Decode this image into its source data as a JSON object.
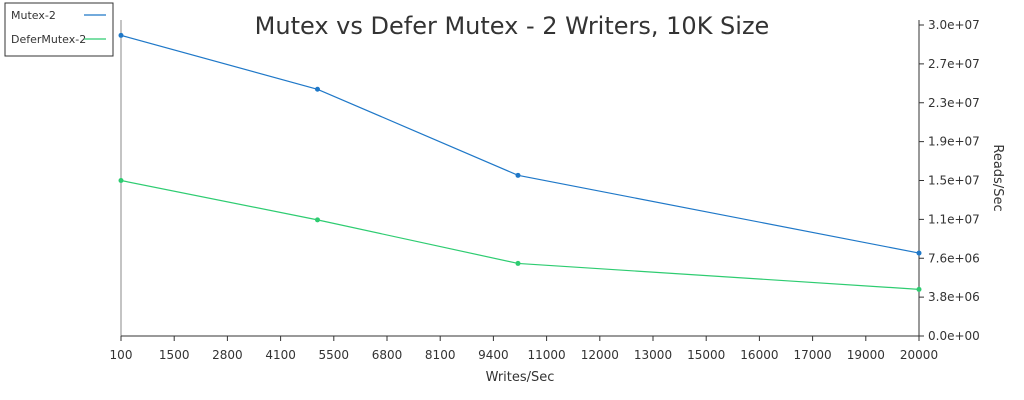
{
  "chart_data": {
    "type": "line",
    "title": "Mutex vs Defer Mutex - 2 Writers, 10K Size",
    "xlabel": "Writes/Sec",
    "ylabel": "Reads/Sec",
    "x_ticks": [
      "100",
      "1500",
      "2800",
      "4100",
      "5500",
      "6800",
      "8100",
      "9400",
      "11000",
      "12000",
      "13000",
      "15000",
      "16000",
      "17000",
      "19000",
      "20000"
    ],
    "xlim": [
      100,
      20000
    ],
    "y_ticks": [
      "0.0e+00",
      "3.8e+06",
      "7.6e+06",
      "1.1e+07",
      "1.5e+07",
      "1.9e+07",
      "2.3e+07",
      "2.7e+07",
      "3.0e+07"
    ],
    "ylim": [
      0,
      30000000
    ],
    "y_axis_side": "right",
    "grid": false,
    "legend_position": "top-left",
    "series": [
      {
        "name": "Mutex-2",
        "color": "#1f78c8",
        "x": [
          100,
          5000,
          10000,
          20000
        ],
        "y": [
          29000000,
          23800000,
          15500000,
          8000000
        ]
      },
      {
        "name": "DeferMutex-2",
        "color": "#2ecc71",
        "x": [
          100,
          5000,
          10000,
          20000
        ],
        "y": [
          15000000,
          11200000,
          7000000,
          4500000
        ]
      }
    ]
  }
}
